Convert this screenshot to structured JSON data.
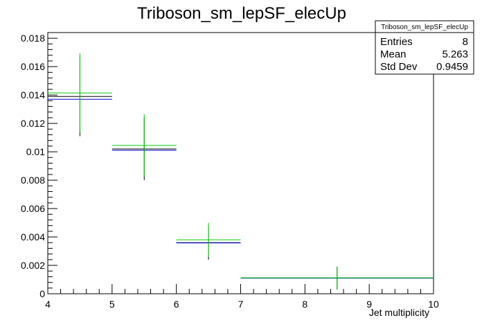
{
  "chart_data": {
    "type": "histogram",
    "title": "Triboson_sm_lepSF_elecUp",
    "xlabel": "Jet multiplicity",
    "ylabel": "",
    "xlim": [
      4,
      10
    ],
    "ylim": [
      0,
      0.0184
    ],
    "x_ticks": [
      "4",
      "5",
      "6",
      "7",
      "8",
      "9",
      "10"
    ],
    "y_ticks": [
      "0",
      "0.002",
      "0.004",
      "0.006",
      "0.008",
      "0.01",
      "0.012",
      "0.014",
      "0.016",
      "0.018"
    ],
    "bins": [
      {
        "low": 4,
        "high": 5,
        "center": 4.5
      },
      {
        "low": 5,
        "high": 6,
        "center": 5.5
      },
      {
        "low": 6,
        "high": 7,
        "center": 6.5
      },
      {
        "low": 7,
        "high": 10,
        "center": 8.5
      }
    ],
    "series": [
      {
        "color": "#000000",
        "values": [
          0.0139,
          0.0102,
          0.0036,
          0.0011
        ],
        "errors": [
          0.0028,
          0.0022,
          0.0012,
          0.0008
        ]
      },
      {
        "color": "#0000cc",
        "values": [
          0.0137,
          0.0101,
          0.00358,
          0.0011
        ],
        "errors": [
          0,
          0,
          0,
          0
        ]
      },
      {
        "color": "#00cc00",
        "values": [
          0.01415,
          0.01045,
          0.0038,
          0.00112
        ],
        "errors": [
          0.0028,
          0.0022,
          0.0012,
          0.0008
        ]
      }
    ],
    "stats_box": {
      "title": "Triboson_sm_lepSF_elecUp",
      "rows": [
        {
          "label": "Entries",
          "value": "8"
        },
        {
          "label": "Mean",
          "value": "5.263"
        },
        {
          "label": "Std Dev",
          "value": "0.9459"
        }
      ]
    }
  }
}
